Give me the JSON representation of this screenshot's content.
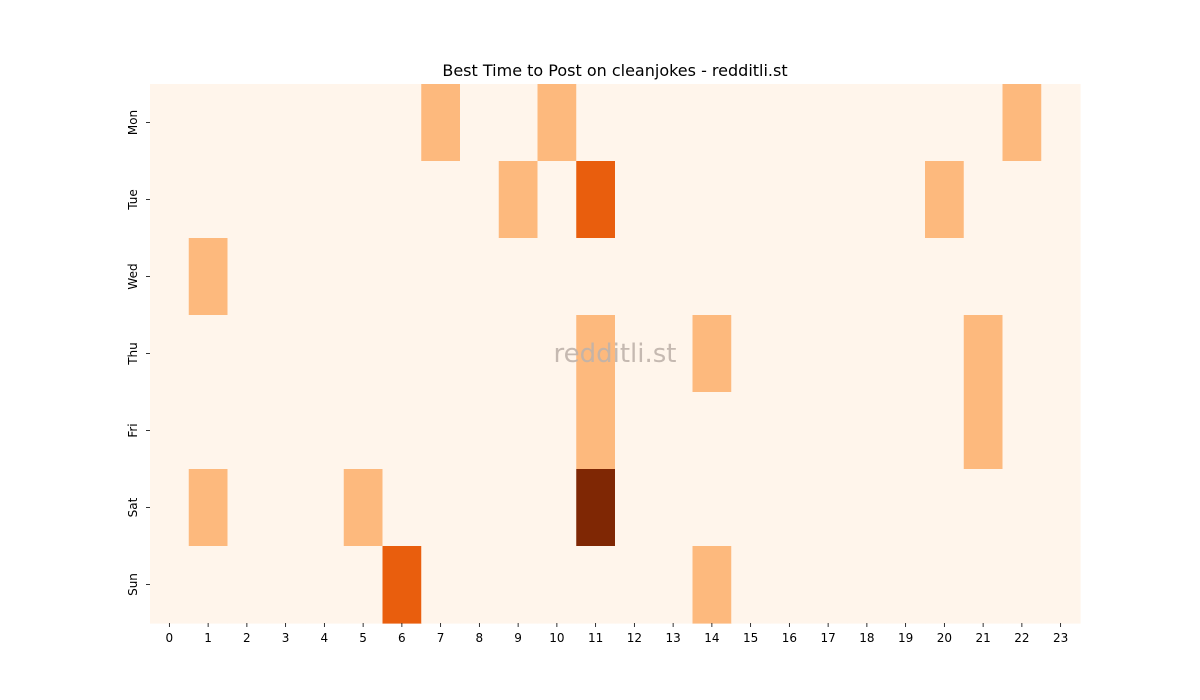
{
  "chart_data": {
    "type": "heatmap",
    "title": "Best Time to Post on cleanjokes - redditli.st",
    "watermark": "redditli.st",
    "xlabel": "",
    "ylabel": "",
    "x_categories": [
      "0",
      "1",
      "2",
      "3",
      "4",
      "5",
      "6",
      "7",
      "8",
      "9",
      "10",
      "11",
      "12",
      "13",
      "14",
      "15",
      "16",
      "17",
      "18",
      "19",
      "20",
      "21",
      "22",
      "23"
    ],
    "y_categories": [
      "Mon",
      "Tue",
      "Wed",
      "Thu",
      "Fri",
      "Sat",
      "Sun"
    ],
    "values": [
      [
        0,
        0,
        0,
        0,
        0,
        0,
        0,
        1,
        0,
        0,
        1,
        0,
        0,
        0,
        0,
        0,
        0,
        0,
        0,
        0,
        0,
        0,
        1,
        0
      ],
      [
        0,
        0,
        0,
        0,
        0,
        0,
        0,
        0,
        0,
        1,
        0,
        2,
        0,
        0,
        0,
        0,
        0,
        0,
        0,
        0,
        1,
        0,
        0,
        0
      ],
      [
        0,
        1,
        0,
        0,
        0,
        0,
        0,
        0,
        0,
        0,
        0,
        0,
        0,
        0,
        0,
        0,
        0,
        0,
        0,
        0,
        0,
        0,
        0,
        0
      ],
      [
        0,
        0,
        0,
        0,
        0,
        0,
        0,
        0,
        0,
        0,
        0,
        1,
        0,
        0,
        1,
        0,
        0,
        0,
        0,
        0,
        0,
        1,
        0,
        0
      ],
      [
        0,
        0,
        0,
        0,
        0,
        0,
        0,
        0,
        0,
        0,
        0,
        1,
        0,
        0,
        0,
        0,
        0,
        0,
        0,
        0,
        0,
        1,
        0,
        0
      ],
      [
        0,
        1,
        0,
        0,
        0,
        1,
        0,
        0,
        0,
        0,
        0,
        3,
        0,
        0,
        0,
        0,
        0,
        0,
        0,
        0,
        0,
        0,
        0,
        0
      ],
      [
        0,
        0,
        0,
        0,
        0,
        0,
        2,
        0,
        0,
        0,
        0,
        0,
        0,
        0,
        1,
        0,
        0,
        0,
        0,
        0,
        0,
        0,
        0,
        0
      ]
    ],
    "value_range": [
      0,
      3
    ],
    "colormap": "Oranges",
    "colors": [
      "#fff5eb",
      "#fdb97d",
      "#e95e0d",
      "#7f2704"
    ],
    "colorbar": false,
    "grid": false
  }
}
